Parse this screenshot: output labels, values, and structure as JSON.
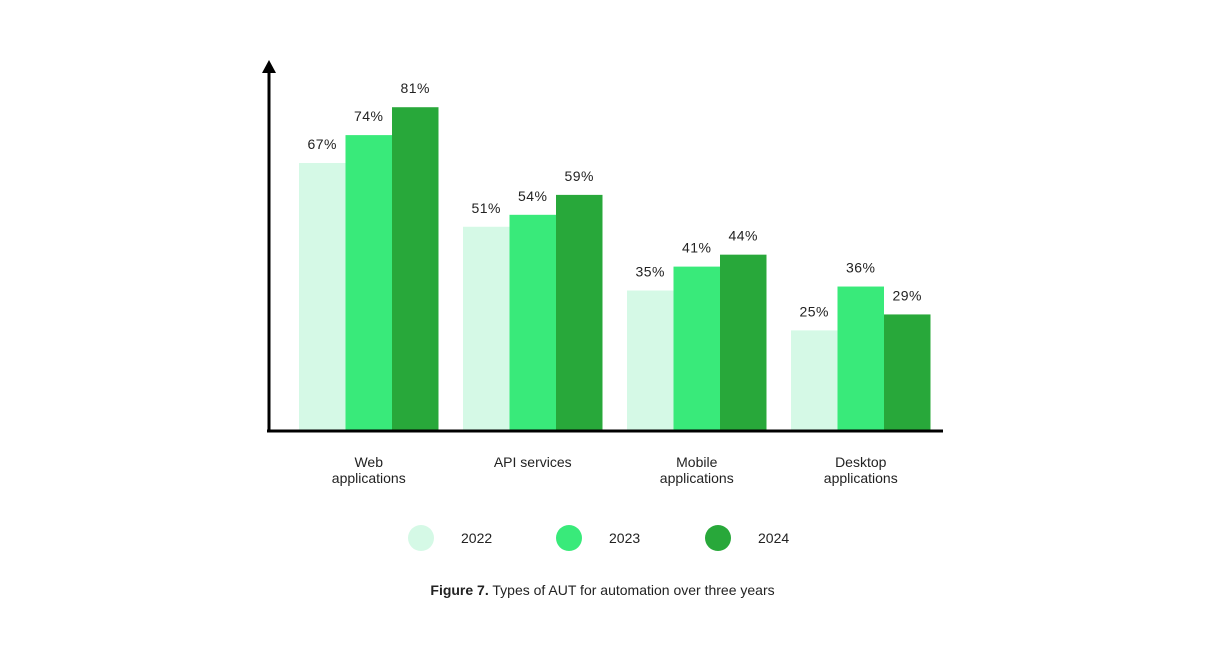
{
  "chart_data": {
    "type": "bar",
    "categories": [
      [
        "Web",
        "applications"
      ],
      [
        "API services"
      ],
      [
        "Mobile",
        "applications"
      ],
      [
        "Desktop",
        "applications"
      ]
    ],
    "series": [
      {
        "name": "2022",
        "color": "#d5f9e6",
        "values": [
          67,
          51,
          35,
          25
        ],
        "labels": [
          "67%",
          "51%",
          "35%",
          "25%"
        ]
      },
      {
        "name": "2023",
        "color": "#39ea7a",
        "values": [
          74,
          54,
          41,
          36
        ],
        "labels": [
          "74%",
          "54%",
          "41%",
          "36%"
        ]
      },
      {
        "name": "2024",
        "color": "#28a83a",
        "values": [
          81,
          59,
          44,
          29
        ],
        "labels": [
          "81%",
          "59%",
          "44%",
          "29%"
        ]
      }
    ],
    "ylim": [
      0,
      100
    ],
    "grid": false,
    "legend_position": "bottom"
  },
  "caption": {
    "bold": "Figure 7.",
    "text": " Types of AUT for automation over three years"
  }
}
